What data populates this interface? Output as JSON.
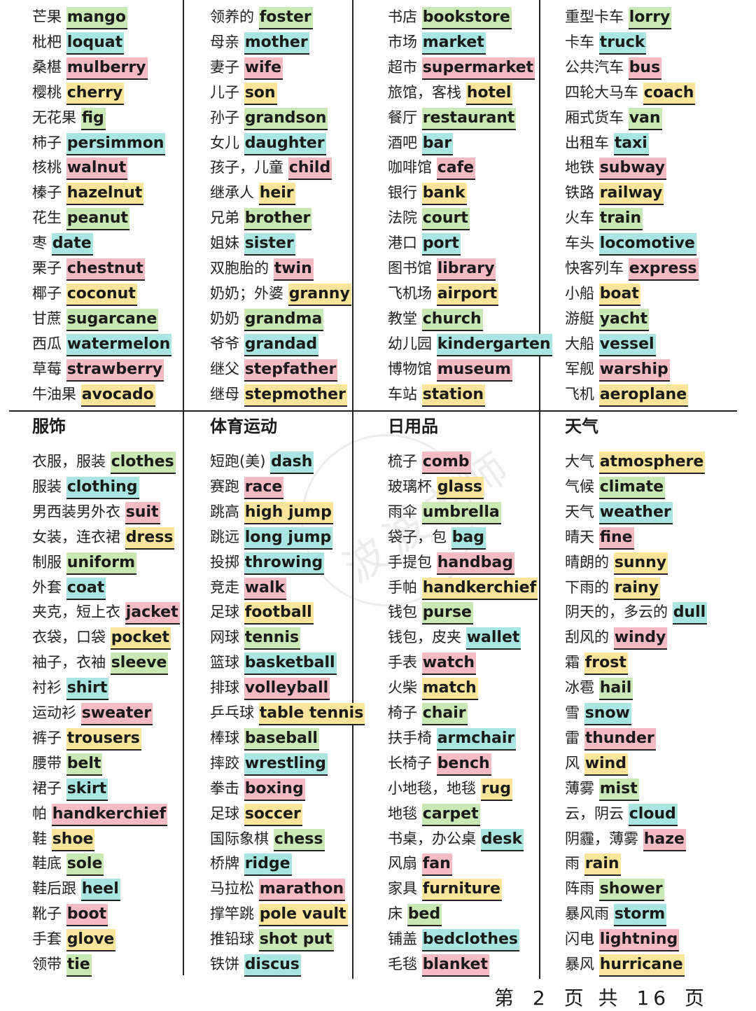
{
  "top": [
    [
      [
        "芒果",
        "mango",
        "green"
      ],
      [
        "枇杷",
        "loquat",
        "blue"
      ],
      [
        "桑椹",
        "mulberry",
        "pink"
      ],
      [
        "樱桃",
        "cherry",
        "yellow"
      ],
      [
        "无花果",
        "fig",
        "green"
      ],
      [
        "柿子",
        "persimmon",
        "blue"
      ],
      [
        "核桃",
        "walnut",
        "pink"
      ],
      [
        "榛子",
        "hazelnut",
        "yellow"
      ],
      [
        "花生",
        "peanut",
        "green"
      ],
      [
        "枣",
        "date",
        "blue"
      ],
      [
        "栗子",
        "chestnut",
        "pink"
      ],
      [
        "椰子",
        "coconut",
        "yellow"
      ],
      [
        "甘蔗",
        "sugarcane",
        "green"
      ],
      [
        "西瓜",
        "watermelon",
        "blue"
      ],
      [
        "草莓",
        "strawberry",
        "pink"
      ],
      [
        "牛油果",
        "avocado",
        "yellow"
      ]
    ],
    [
      [
        "领养的",
        "foster",
        "green"
      ],
      [
        "母亲",
        "mother",
        "blue"
      ],
      [
        "妻子",
        "wife",
        "pink"
      ],
      [
        "儿子",
        "son",
        "yellow"
      ],
      [
        "孙子",
        "grandson",
        "green"
      ],
      [
        "女儿",
        "daughter",
        "blue"
      ],
      [
        "孩子，儿童",
        "child",
        "pink"
      ],
      [
        "继承人",
        "heir",
        "yellow"
      ],
      [
        "兄弟",
        "brother",
        "green"
      ],
      [
        "姐妹",
        "sister",
        "blue"
      ],
      [
        "双胞胎的",
        "twin",
        "pink"
      ],
      [
        "奶奶；外婆",
        "granny",
        "yellow"
      ],
      [
        "奶奶",
        "grandma",
        "green"
      ],
      [
        "爷爷",
        "grandad",
        "blue"
      ],
      [
        "继父",
        "stepfather",
        "pink"
      ],
      [
        "继母",
        "stepmother",
        "yellow"
      ]
    ],
    [
      [
        "书店",
        "bookstore",
        "green"
      ],
      [
        "市场",
        "market",
        "blue"
      ],
      [
        "超市",
        "supermarket",
        "pink"
      ],
      [
        "旅馆，客栈",
        "hotel",
        "yellow"
      ],
      [
        "餐厅",
        "restaurant",
        "green"
      ],
      [
        "酒吧",
        "bar",
        "blue"
      ],
      [
        "咖啡馆",
        "cafe",
        "pink"
      ],
      [
        "银行",
        "bank",
        "yellow"
      ],
      [
        "法院",
        "court",
        "green"
      ],
      [
        "港口",
        "port",
        "blue"
      ],
      [
        "图书馆",
        "library",
        "pink"
      ],
      [
        "飞机场",
        "airport",
        "yellow"
      ],
      [
        "教堂",
        "church",
        "green"
      ],
      [
        "幼儿园",
        "kindergarten",
        "blue"
      ],
      [
        "博物馆",
        "museum",
        "pink"
      ],
      [
        "车站",
        "station",
        "yellow"
      ]
    ],
    [
      [
        "重型卡车",
        "lorry",
        "green"
      ],
      [
        "卡车",
        "truck",
        "blue"
      ],
      [
        "公共汽车",
        "bus",
        "pink"
      ],
      [
        "四轮大马车",
        "coach",
        "yellow"
      ],
      [
        "厢式货车",
        "van",
        "green"
      ],
      [
        "出租车",
        "taxi",
        "blue"
      ],
      [
        "地铁",
        "subway",
        "pink"
      ],
      [
        "铁路",
        "railway",
        "yellow"
      ],
      [
        "火车",
        "train",
        "green"
      ],
      [
        "车头",
        "locomotive",
        "blue"
      ],
      [
        "快客列车",
        "express",
        "pink"
      ],
      [
        "小船",
        "boat",
        "yellow"
      ],
      [
        "游艇",
        "yacht",
        "green"
      ],
      [
        "大船",
        "vessel",
        "blue"
      ],
      [
        "军舰",
        "warship",
        "pink"
      ],
      [
        "飞机",
        "aeroplane",
        "yellow"
      ]
    ]
  ],
  "headings": [
    "服饰",
    "体育运动",
    "日用品",
    "天气"
  ],
  "bottom": [
    [
      [
        "衣服，服装",
        "clothes",
        "green"
      ],
      [
        "服装",
        "clothing",
        "blue"
      ],
      [
        "男西装男外衣",
        "suit",
        "pink"
      ],
      [
        "女装，连衣裙",
        "dress",
        "yellow"
      ],
      [
        "制服",
        "uniform",
        "green"
      ],
      [
        "外套",
        "coat",
        "blue"
      ],
      [
        "夹克，短上衣",
        "jacket",
        "pink"
      ],
      [
        "衣袋，口袋",
        "pocket",
        "yellow"
      ],
      [
        "袖子，衣袖",
        "sleeve",
        "green"
      ],
      [
        "衬衫",
        "shirt",
        "blue"
      ],
      [
        "运动衫",
        "sweater",
        "pink"
      ],
      [
        "裤子",
        "trousers",
        "yellow"
      ],
      [
        "腰带",
        "belt",
        "green"
      ],
      [
        "裙子",
        "skirt",
        "blue"
      ],
      [
        "帕",
        "handkerchief",
        "pink"
      ],
      [
        "鞋",
        "shoe",
        "yellow"
      ],
      [
        "鞋底",
        "sole",
        "green"
      ],
      [
        "鞋后跟",
        "heel",
        "blue"
      ],
      [
        "靴子",
        "boot",
        "pink"
      ],
      [
        "手套",
        "glove",
        "yellow"
      ],
      [
        "领带",
        "tie",
        "green"
      ]
    ],
    [
      [
        "短跑(美)",
        "dash",
        "blue"
      ],
      [
        "赛跑",
        "race",
        "pink"
      ],
      [
        "跳高",
        "high jump",
        "yellow"
      ],
      [
        "跳远",
        "long jump",
        "blue"
      ],
      [
        "投掷",
        "throwing",
        "blue"
      ],
      [
        "竞走",
        "walk",
        "pink"
      ],
      [
        "足球",
        "football",
        "yellow"
      ],
      [
        "网球",
        "tennis",
        "green"
      ],
      [
        "篮球",
        "basketball",
        "blue"
      ],
      [
        "排球",
        "volleyball",
        "pink"
      ],
      [
        "乒乓球",
        "table tennis",
        "yellow"
      ],
      [
        "棒球",
        "baseball",
        "green"
      ],
      [
        "摔跤",
        "wrestling",
        "blue"
      ],
      [
        "拳击",
        "boxing",
        "pink"
      ],
      [
        "足球",
        "soccer",
        "yellow"
      ],
      [
        "国际象棋",
        "chess",
        "green"
      ],
      [
        "桥牌",
        "ridge",
        "blue"
      ],
      [
        "马拉松",
        "marathon",
        "pink"
      ],
      [
        "撑竿跳",
        "pole vault",
        "yellow"
      ],
      [
        "推铅球",
        "shot put",
        "green"
      ],
      [
        "铁饼",
        "discus",
        "blue"
      ]
    ],
    [
      [
        "梳子",
        "comb",
        "pink"
      ],
      [
        "玻璃杯",
        "glass",
        "yellow"
      ],
      [
        "雨伞",
        "umbrella",
        "green"
      ],
      [
        "袋子，包",
        "bag",
        "blue"
      ],
      [
        "手提包",
        "handbag",
        "pink"
      ],
      [
        "手帕",
        "handkerchief",
        "yellow"
      ],
      [
        "钱包",
        "purse",
        "green"
      ],
      [
        "钱包，皮夹",
        "wallet",
        "blue"
      ],
      [
        "手表",
        "watch",
        "pink"
      ],
      [
        "火柴",
        "match",
        "yellow"
      ],
      [
        "椅子",
        "chair",
        "green"
      ],
      [
        "扶手椅",
        "armchair",
        "blue"
      ],
      [
        "长椅子",
        "bench",
        "pink"
      ],
      [
        "小地毯，地毯",
        "rug",
        "yellow"
      ],
      [
        "地毯",
        "carpet",
        "green"
      ],
      [
        "书桌，办公桌",
        "desk",
        "blue"
      ],
      [
        "风扇",
        "fan",
        "pink"
      ],
      [
        "家具",
        "furniture",
        "yellow"
      ],
      [
        "床",
        "bed",
        "green"
      ],
      [
        "铺盖",
        "bedclothes",
        "blue"
      ],
      [
        "毛毯",
        "blanket",
        "pink"
      ]
    ],
    [
      [
        "大气",
        "atmosphere",
        "yellow"
      ],
      [
        "气候",
        "climate",
        "green"
      ],
      [
        "天气",
        "weather",
        "blue"
      ],
      [
        "晴天",
        "fine",
        "pink"
      ],
      [
        "晴朗的",
        "sunny",
        "yellow"
      ],
      [
        "下雨的",
        "rainy",
        "yellow"
      ],
      [
        "阴天的，多云的",
        "dull",
        "blue"
      ],
      [
        "刮风的",
        "windy",
        "pink"
      ],
      [
        "霜",
        "frost",
        "yellow"
      ],
      [
        "冰雹",
        "hail",
        "green"
      ],
      [
        "雪",
        "snow",
        "blue"
      ],
      [
        "雷",
        "thunder",
        "pink"
      ],
      [
        "风",
        "wind",
        "yellow"
      ],
      [
        "薄雾",
        "mist",
        "green"
      ],
      [
        "云，阴云",
        "cloud",
        "blue"
      ],
      [
        "阴霾，薄雾",
        "haze",
        "pink"
      ],
      [
        "雨",
        "rain",
        "yellow"
      ],
      [
        "阵雨",
        "shower",
        "green"
      ],
      [
        "暴风雨",
        "storm",
        "blue"
      ],
      [
        "闪电",
        "lightning",
        "pink"
      ],
      [
        "暴风",
        "hurricane",
        "yellow"
      ]
    ]
  ],
  "footer": {
    "a": "第",
    "num": "2",
    "b": "页",
    "c": "共",
    "total": "16",
    "d": "页"
  },
  "watermark": "波波老师"
}
